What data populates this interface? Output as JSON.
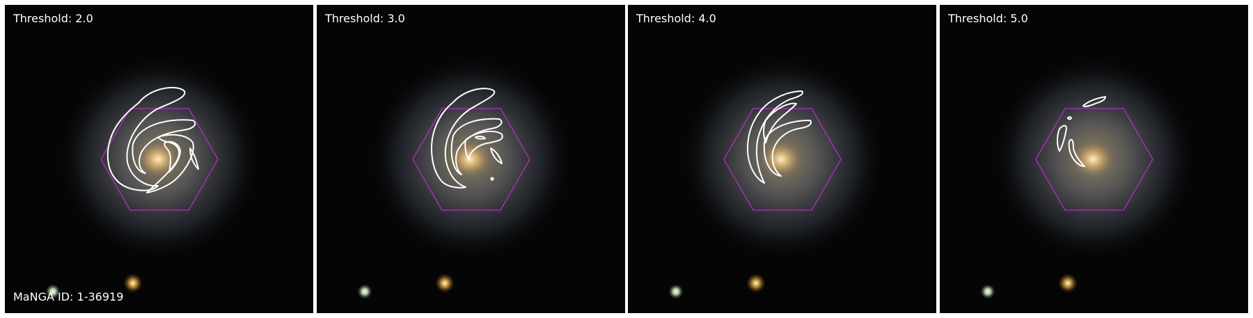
{
  "figure": {
    "object_id_label": "MaNGA ID: 1-36919",
    "hexagon_color": "#b62cc4",
    "contour_color": "#ffffff",
    "background_color": "#050505"
  },
  "panels": [
    {
      "label": "Threshold: 2.0",
      "threshold": 2.0
    },
    {
      "label": "Threshold: 3.0",
      "threshold": 3.0
    },
    {
      "label": "Threshold: 4.0",
      "threshold": 4.0
    },
    {
      "label": "Threshold: 5.0",
      "threshold": 5.0
    }
  ]
}
